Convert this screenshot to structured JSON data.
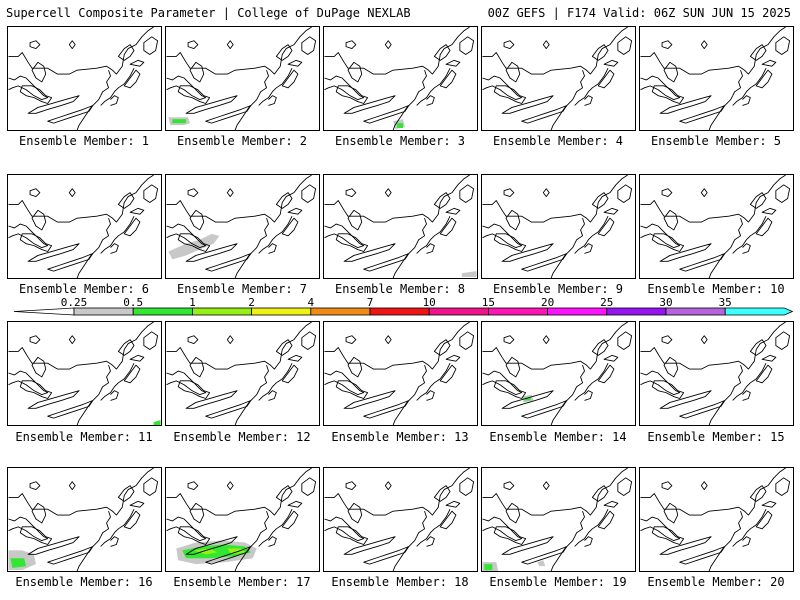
{
  "header": {
    "title_left": "Supercell Composite Parameter | College of DuPage NEXLAB",
    "title_right": "00Z GEFS | F174 Valid: 06Z SUN JUN 15 2025"
  },
  "colorbar": {
    "ticks": [
      "0.25",
      "0.5",
      "1",
      "2",
      "4",
      "7",
      "10",
      "15",
      "20",
      "25",
      "30",
      "35"
    ],
    "colors": [
      "#c8c8c8",
      "#32e632",
      "#96f014",
      "#f0f014",
      "#f08c14",
      "#f01414",
      "#f0148c",
      "#ff14b4",
      "#ff14ff",
      "#9614f0",
      "#b464dc",
      "#3cffff"
    ],
    "extend_left_color": "#ffffff"
  },
  "members": [
    {
      "label": "Ensemble Member: 1",
      "shading": []
    },
    {
      "label": "Ensemble Member: 2",
      "shading": [
        {
          "level": "0.25",
          "where": "southwest corner"
        },
        {
          "level": "0.5",
          "where": "southwest corner"
        }
      ]
    },
    {
      "label": "Ensemble Member: 3",
      "shading": [
        {
          "level": "0.25",
          "where": "bottom center"
        },
        {
          "level": "0.5",
          "where": "bottom center"
        }
      ]
    },
    {
      "label": "Ensemble Member: 4",
      "shading": []
    },
    {
      "label": "Ensemble Member: 5",
      "shading": []
    },
    {
      "label": "Ensemble Member: 6",
      "shading": []
    },
    {
      "label": "Ensemble Member: 7",
      "shading": [
        {
          "level": "0.25",
          "where": "west"
        }
      ]
    },
    {
      "label": "Ensemble Member: 8",
      "shading": [
        {
          "level": "0.25",
          "where": "southeast edge"
        }
      ]
    },
    {
      "label": "Ensemble Member: 9",
      "shading": []
    },
    {
      "label": "Ensemble Member: 10",
      "shading": []
    },
    {
      "label": "Ensemble Member: 11",
      "shading": [
        {
          "level": "0.5",
          "where": "southeast corner"
        }
      ]
    },
    {
      "label": "Ensemble Member: 12",
      "shading": []
    },
    {
      "label": "Ensemble Member: 13",
      "shading": []
    },
    {
      "label": "Ensemble Member: 14",
      "shading": [
        {
          "level": "0.25",
          "where": "center"
        },
        {
          "level": "0.5",
          "where": "center"
        }
      ]
    },
    {
      "label": "Ensemble Member: 15",
      "shading": []
    },
    {
      "label": "Ensemble Member: 16",
      "shading": [
        {
          "level": "0.25",
          "where": "southwest"
        },
        {
          "level": "0.5",
          "where": "southwest"
        }
      ]
    },
    {
      "label": "Ensemble Member: 17",
      "shading": [
        {
          "level": "0.25",
          "where": "south"
        },
        {
          "level": "0.5",
          "where": "south"
        },
        {
          "level": "1",
          "where": "south"
        }
      ]
    },
    {
      "label": "Ensemble Member: 18",
      "shading": []
    },
    {
      "label": "Ensemble Member: 19",
      "shading": [
        {
          "level": "0.25",
          "where": "southwest"
        },
        {
          "level": "0.5",
          "where": "southwest"
        }
      ]
    },
    {
      "label": "Ensemble Member: 20",
      "shading": []
    }
  ]
}
